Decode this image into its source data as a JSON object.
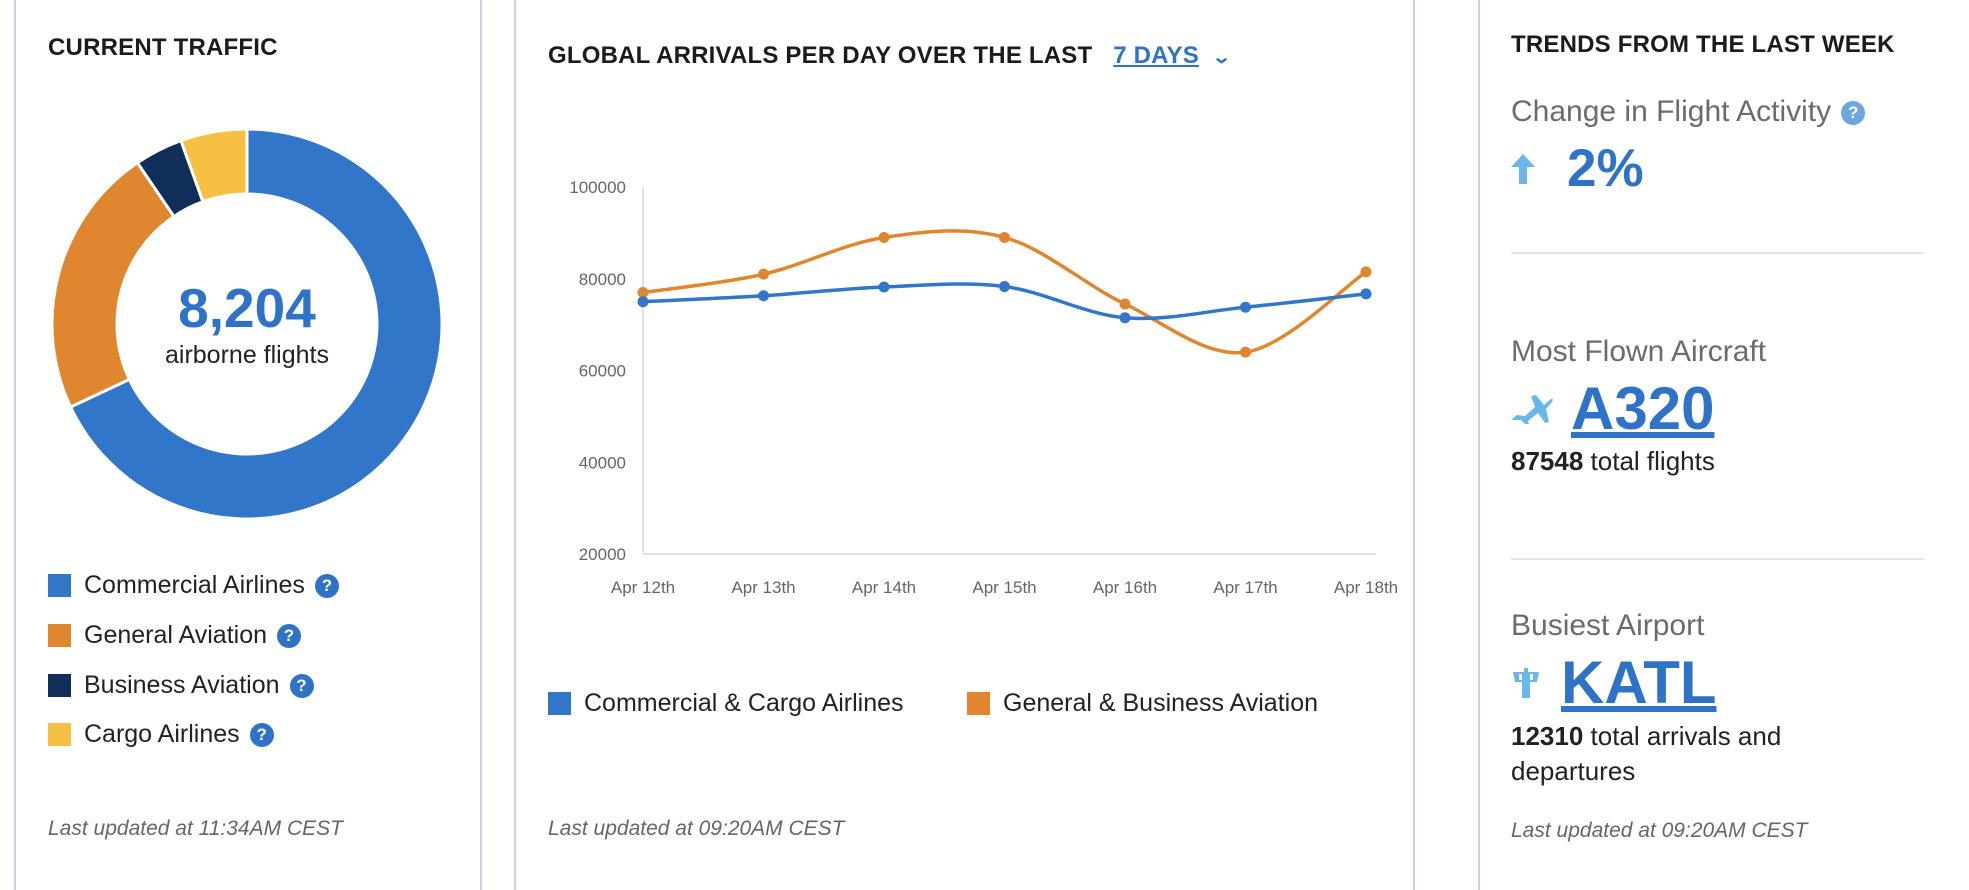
{
  "current_traffic": {
    "title": "CURRENT TRAFFIC",
    "count": "8,204",
    "count_label": "airborne flights",
    "segments": [
      {
        "label": "Commercial Airlines",
        "share": 68,
        "color": "#3176c9"
      },
      {
        "label": "General Aviation",
        "share": 22.5,
        "color": "#e0862e"
      },
      {
        "label": "Business Aviation",
        "share": 4,
        "color": "#112d5a"
      },
      {
        "label": "Cargo Airlines",
        "share": 5.5,
        "color": "#f6c143"
      }
    ],
    "help_glyph": "?",
    "last_updated": "Last updated at 11:34AM CEST"
  },
  "arrivals": {
    "title": "GLOBAL ARRIVALS PER DAY OVER THE LAST",
    "range_label": "7 DAYS",
    "last_updated": "Last updated at 09:20AM CEST"
  },
  "chart_data": {
    "type": "line",
    "title": "GLOBAL ARRIVALS PER DAY OVER THE LAST 7 DAYS",
    "categories": [
      "Apr 12th",
      "Apr 13th",
      "Apr 14th",
      "Apr 15th",
      "Apr 16th",
      "Apr 17th",
      "Apr 18th"
    ],
    "yticks": [
      "100000",
      "80000",
      "60000",
      "40000",
      "20000"
    ],
    "ylim": [
      20000,
      100000
    ],
    "series": [
      {
        "name": "Commercial & Cargo Airlines",
        "color": "#3176c9",
        "values": [
          75000,
          76300,
          78200,
          78300,
          71500,
          73800,
          76700
        ]
      },
      {
        "name": "General & Business Aviation",
        "color": "#e0862e",
        "values": [
          77000,
          81000,
          89000,
          89000,
          74500,
          64000,
          81500
        ]
      }
    ],
    "legend": "bottom"
  },
  "trends": {
    "title": "TRENDS FROM THE LAST WEEK",
    "change_label": "Change in Flight Activity",
    "change_value": "2%",
    "aircraft_label": "Most Flown Aircraft",
    "aircraft_value": "A320",
    "aircraft_count": "87548",
    "aircraft_count_suffix": "total flights",
    "airport_label": "Busiest Airport",
    "airport_value": "KATL",
    "airport_count": "12310",
    "airport_count_suffix": "total arrivals and",
    "airport_count_suffix2": "departures",
    "last_updated": "Last updated at 09:20AM CEST"
  }
}
